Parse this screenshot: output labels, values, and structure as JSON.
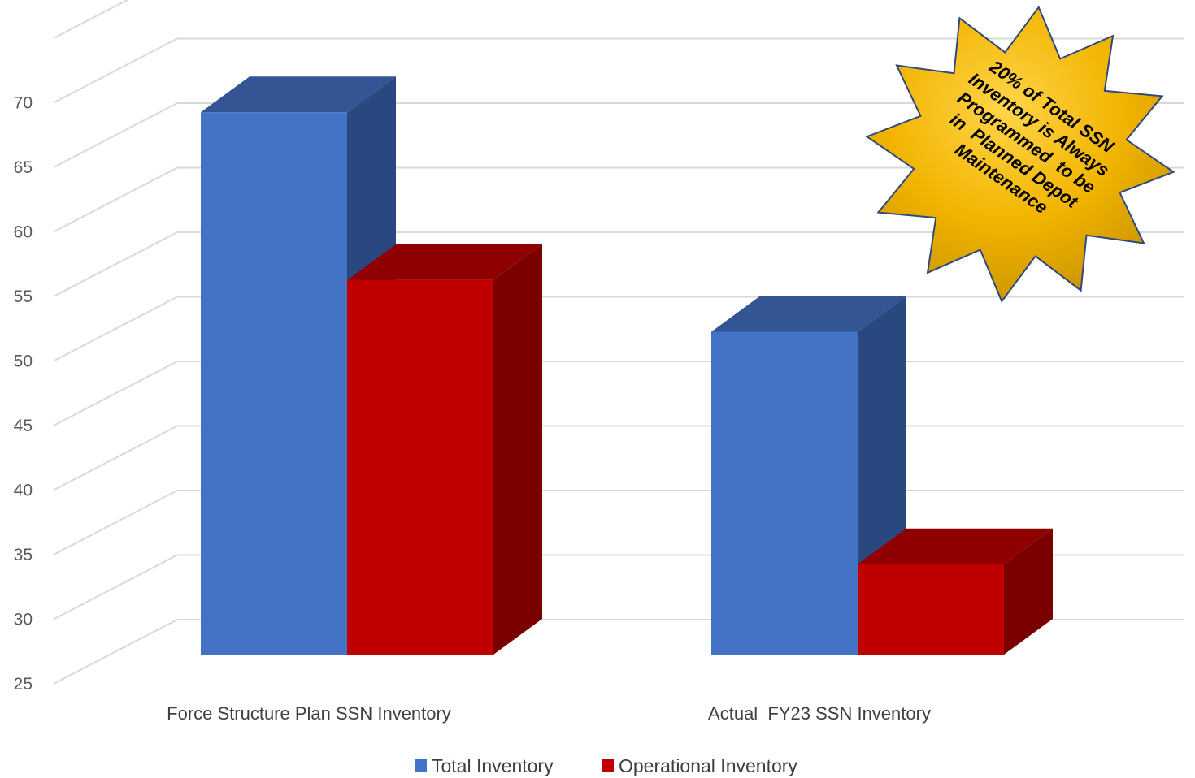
{
  "chart_data": {
    "type": "bar",
    "title": "",
    "xlabel": "",
    "ylabel": "",
    "ylim": [
      25,
      70
    ],
    "yticks": [
      25,
      30,
      35,
      40,
      45,
      50,
      55,
      60,
      65,
      70
    ],
    "categories": [
      "Force Structure Plan SSN Inventory",
      "Actual  FY23 SSN Inventory"
    ],
    "series": [
      {
        "name": "Total Inventory",
        "values": [
          67,
          50
        ],
        "color": "#4472C4"
      },
      {
        "name": "Operational Inventory",
        "values": [
          54,
          32
        ],
        "color": "#C00000"
      }
    ],
    "grid": true,
    "legend_position": "bottom",
    "style": "3d-clustered-column",
    "annotation": {
      "shape": "starburst",
      "color": "#F2B800",
      "lines": [
        "20% of Total SSN",
        "Inventory is Always",
        "Programmed  to be",
        "in  Planned Depot",
        "Maintenance"
      ]
    }
  }
}
